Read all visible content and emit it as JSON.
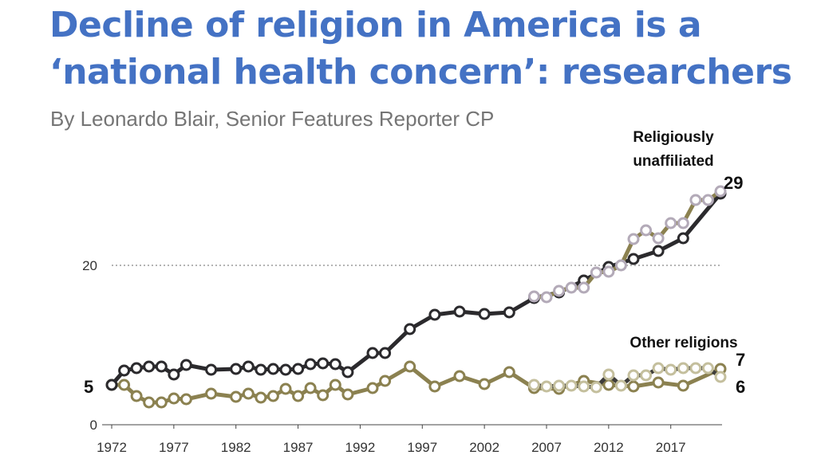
{
  "article": {
    "headline": "Decline of religion in America is a ‘national health concern’: researchers",
    "byline": "By Leonardo Blair, Senior Features Reporter CP"
  },
  "colors": {
    "headline": "#4472c4",
    "byline": "#757575",
    "unaffiliated_primary": "#2b2a2d",
    "unaffiliated_secondary": "#8b8150",
    "unaffiliated_secondary_markers": "#b3aab8",
    "other_primary": "#8b8150",
    "other_secondary": "#3e3d3a",
    "other_secondary_markers": "#c4bf9d",
    "gridline": "#9a9a9a",
    "axis": "#444444"
  },
  "chart_data": {
    "type": "line",
    "xlim": [
      1972,
      2021
    ],
    "ylim": [
      0,
      30
    ],
    "x_ticks": [
      1972,
      1977,
      1982,
      1987,
      1992,
      1997,
      2002,
      2007,
      2012,
      2017
    ],
    "y_ticks": [
      0,
      20
    ],
    "gridlines": [
      20
    ],
    "series": [
      {
        "name": "Religiously unaffiliated",
        "label": "Religiously unaffiliated",
        "end_value_label": "29",
        "start_value_label": "5",
        "points": [
          [
            1972,
            5.0
          ],
          [
            1973,
            6.8
          ],
          [
            1974,
            7.1
          ],
          [
            1975,
            7.3
          ],
          [
            1976,
            7.3
          ],
          [
            1977,
            6.3
          ],
          [
            1978,
            7.5
          ],
          [
            1980,
            6.9
          ],
          [
            1982,
            7.0
          ],
          [
            1983,
            7.3
          ],
          [
            1984,
            6.9
          ],
          [
            1985,
            7.0
          ],
          [
            1986,
            6.9
          ],
          [
            1987,
            7.0
          ],
          [
            1988,
            7.6
          ],
          [
            1989,
            7.7
          ],
          [
            1990,
            7.6
          ],
          [
            1991,
            6.6
          ],
          [
            1993,
            9.0
          ],
          [
            1994,
            9.0
          ],
          [
            1996,
            12.0
          ],
          [
            1998,
            13.8
          ],
          [
            2000,
            14.2
          ],
          [
            2002,
            13.9
          ],
          [
            2004,
            14.1
          ],
          [
            2006,
            15.9
          ],
          [
            2008,
            16.6
          ],
          [
            2010,
            18.1
          ],
          [
            2012,
            19.8
          ],
          [
            2014,
            20.8
          ],
          [
            2016,
            21.8
          ],
          [
            2018,
            23.4
          ],
          [
            2021,
            29.0
          ]
        ],
        "secondary_points": [
          [
            2006,
            16.1
          ],
          [
            2007,
            16.0
          ],
          [
            2008,
            16.8
          ],
          [
            2009,
            17.2
          ],
          [
            2010,
            17.2
          ],
          [
            2011,
            19.1
          ],
          [
            2012,
            19.2
          ],
          [
            2013,
            20.0
          ],
          [
            2014,
            23.3
          ],
          [
            2015,
            24.4
          ],
          [
            2016,
            23.4
          ],
          [
            2017,
            25.3
          ],
          [
            2018,
            25.3
          ],
          [
            2019,
            28.2
          ],
          [
            2020,
            28.2
          ],
          [
            2021,
            29.3
          ]
        ]
      },
      {
        "name": "Other religions",
        "label": "Other religions",
        "end_value_labels": [
          "7",
          "6"
        ],
        "points": [
          [
            1972,
            5.0
          ],
          [
            1973,
            5.0
          ],
          [
            1974,
            3.6
          ],
          [
            1975,
            2.8
          ],
          [
            1976,
            2.8
          ],
          [
            1977,
            3.3
          ],
          [
            1978,
            3.2
          ],
          [
            1980,
            3.9
          ],
          [
            1982,
            3.5
          ],
          [
            1983,
            3.9
          ],
          [
            1984,
            3.4
          ],
          [
            1985,
            3.6
          ],
          [
            1986,
            4.5
          ],
          [
            1987,
            3.6
          ],
          [
            1988,
            4.6
          ],
          [
            1989,
            3.7
          ],
          [
            1990,
            5.0
          ],
          [
            1991,
            3.8
          ],
          [
            1993,
            4.6
          ],
          [
            1994,
            5.5
          ],
          [
            1996,
            7.3
          ],
          [
            1998,
            4.8
          ],
          [
            2000,
            6.1
          ],
          [
            2002,
            5.1
          ],
          [
            2004,
            6.6
          ],
          [
            2006,
            4.6
          ],
          [
            2008,
            4.5
          ],
          [
            2010,
            5.5
          ],
          [
            2012,
            5.0
          ],
          [
            2014,
            4.8
          ],
          [
            2016,
            5.3
          ],
          [
            2018,
            4.9
          ],
          [
            2021,
            7.0
          ]
        ],
        "secondary_points": [
          [
            2006,
            5.0
          ],
          [
            2007,
            4.8
          ],
          [
            2008,
            4.9
          ],
          [
            2009,
            4.9
          ],
          [
            2010,
            4.8
          ],
          [
            2011,
            4.7
          ],
          [
            2012,
            6.3
          ],
          [
            2013,
            4.9
          ],
          [
            2014,
            6.2
          ],
          [
            2015,
            6.2
          ],
          [
            2016,
            7.1
          ],
          [
            2017,
            6.9
          ],
          [
            2018,
            7.1
          ],
          [
            2019,
            7.1
          ],
          [
            2020,
            7.1
          ],
          [
            2021,
            6.0
          ]
        ]
      }
    ]
  }
}
